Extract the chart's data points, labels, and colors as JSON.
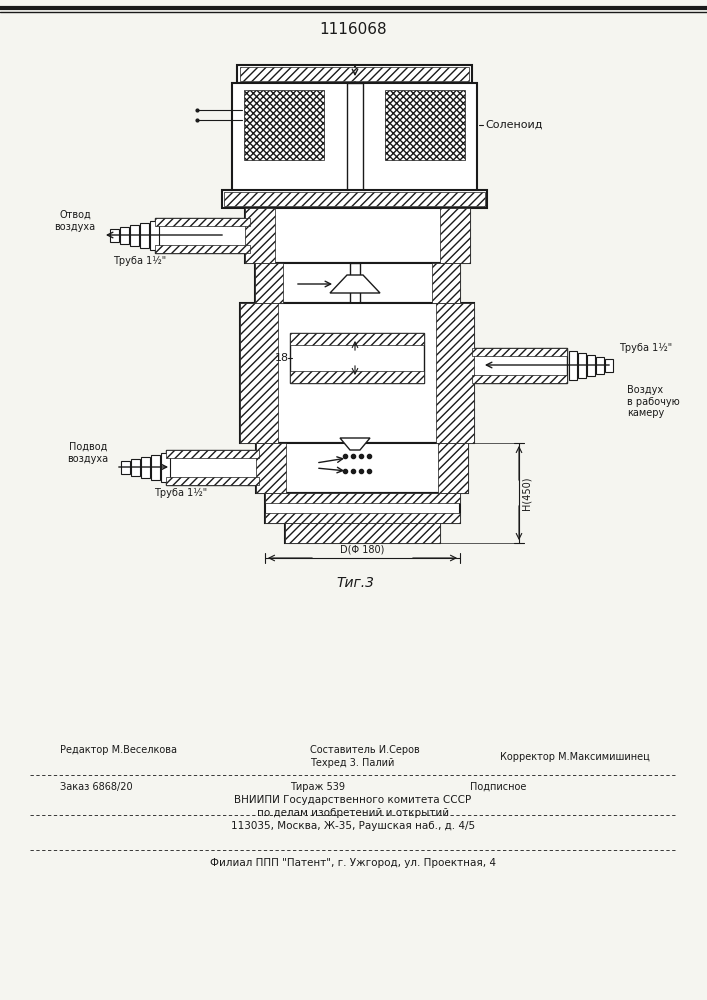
{
  "patent_number": "1116068",
  "fig_label": "Τиг.3",
  "background_color": "#f5f5f0",
  "line_color": "#1a1a1a",
  "hatch_color": "#1a1a1a",
  "labels": {
    "solenoid": "Соленоид",
    "otvod_vozduha": "Отвод\nвоздуха",
    "truba1": "Труба 1½\"",
    "truba2": "Труба 1½\"",
    "truba3": "Труба 1½\"",
    "podvod_vozduha": "Подвод\nвоздуха",
    "vozduh_v_rabochuyu": "Воздух\nв рабочую\nкамеру",
    "D_label": "D(Φ 180)",
    "H_label": "H(450)",
    "num18": "18"
  },
  "editor_line1": "Редактор М.Веселкова",
  "editor_line2": "Составитель И.Серов",
  "editor_line3": "Техред 3. Палий",
  "editor_line4": "Корректор М.Максимишинец",
  "footer1": "Заказ 6868/20",
  "footer2": "Тираж 539",
  "footer3": "Подписное",
  "footer4": "ВНИИПИ Государственного комитета СССР",
  "footer5": "по делам изобретений и открытий",
  "footer6": "113035, Москва, Ж-35, Раушская наб., д. 4/5",
  "footer7": "Филиал ППП \"Патент\", г. Ужгород, ул. Проектная, 4"
}
